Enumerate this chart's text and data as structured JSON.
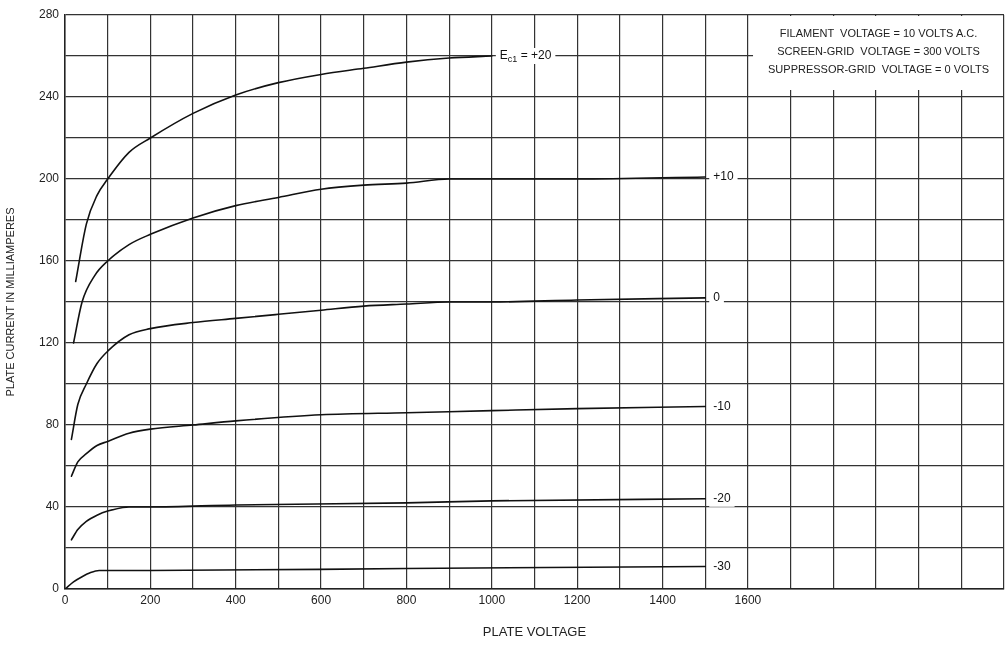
{
  "chart_data": {
    "type": "line",
    "xlabel": "PLATE VOLTAGE",
    "ylabel": "PLATE CURRENT IN MILLIAMPERES",
    "annotations": [
      "FILAMENT  VOLTAGE = 10 VOLTS A.C.",
      "SCREEN-GRID  VOLTAGE = 300 VOLTS",
      "SUPPRESSOR-GRID  VOLTAGE = 0 VOLTS"
    ],
    "xlim": [
      0,
      2200
    ],
    "xticks": [
      0,
      {
        "value": 100,
        "label": null
      },
      200,
      {
        "value": 300,
        "label": null
      },
      400,
      {
        "value": 500,
        "label": null
      },
      600,
      {
        "value": 700,
        "label": null
      },
      800,
      {
        "value": 900,
        "label": null
      },
      1000,
      {
        "value": 1100,
        "label": null
      },
      1200,
      {
        "value": 1300,
        "label": null
      },
      1400,
      {
        "value": 1500,
        "label": null
      },
      1600,
      {
        "value": 1700,
        "label": null
      },
      {
        "value": 1800,
        "label": null
      },
      {
        "value": 1900,
        "label": null
      },
      {
        "value": 2000,
        "label": null
      },
      {
        "value": 2100,
        "label": null
      },
      {
        "value": 2200,
        "label": null
      }
    ],
    "ylim": [
      0,
      280
    ],
    "yticks": [
      0,
      {
        "value": 20,
        "label": null
      },
      40,
      {
        "value": 60,
        "label": null
      },
      80,
      {
        "value": 100,
        "label": null
      },
      120,
      {
        "value": 140,
        "label": null
      },
      160,
      {
        "value": 180,
        "label": null
      },
      200,
      {
        "value": 220,
        "label": null
      },
      240,
      {
        "value": 260,
        "label": null
      },
      280
    ],
    "grid": true,
    "legend": false,
    "marker": "none",
    "line_style": "solid",
    "series": [
      {
        "name": "E$_{c1}$ = +20",
        "color": "#111111",
        "x": [
          25,
          50,
          75,
          100,
          150,
          200,
          300,
          400,
          500,
          600,
          700,
          800,
          900,
          1000
        ],
        "values": [
          150,
          178,
          192,
          200,
          213,
          220,
          232,
          241,
          247,
          251,
          254,
          257,
          259,
          260
        ]
      },
      {
        "name": "+10",
        "color": "#111111",
        "x": [
          20,
          40,
          70,
          100,
          150,
          200,
          300,
          400,
          500,
          600,
          700,
          800,
          900,
          1000,
          1200,
          1500
        ],
        "values": [
          120,
          140,
          153,
          160,
          168,
          173,
          181,
          187,
          191,
          195,
          197,
          198,
          200,
          200,
          200,
          201
        ]
      },
      {
        "name": "0",
        "color": "#111111",
        "x": [
          15,
          30,
          50,
          75,
          100,
          150,
          200,
          300,
          400,
          500,
          600,
          700,
          800,
          900,
          1000,
          1200,
          1500
        ],
        "values": [
          73,
          90,
          100,
          110,
          116,
          124,
          127,
          130,
          132,
          134,
          136,
          138,
          139,
          140,
          140,
          141,
          142
        ]
      },
      {
        "name": "-10",
        "color": "#111111",
        "x": [
          15,
          30,
          50,
          75,
          100,
          150,
          200,
          300,
          400,
          600,
          800,
          1000,
          1200,
          1500
        ],
        "values": [
          55,
          62,
          66,
          70,
          72,
          76,
          78,
          80,
          82,
          85,
          86,
          87,
          88,
          89
        ]
      },
      {
        "name": "-20",
        "color": "#111111",
        "x": [
          15,
          30,
          50,
          75,
          100,
          150,
          200,
          400,
          800,
          1000,
          1500
        ],
        "values": [
          24,
          29,
          33,
          36,
          38,
          40,
          40,
          41,
          42,
          43,
          44
        ]
      },
      {
        "name": "-30",
        "color": "#111111",
        "x": [
          0,
          20,
          40,
          60,
          80,
          200,
          800,
          1500
        ],
        "values": [
          0,
          3.5,
          6,
          8,
          9,
          9,
          10,
          11
        ]
      }
    ]
  }
}
